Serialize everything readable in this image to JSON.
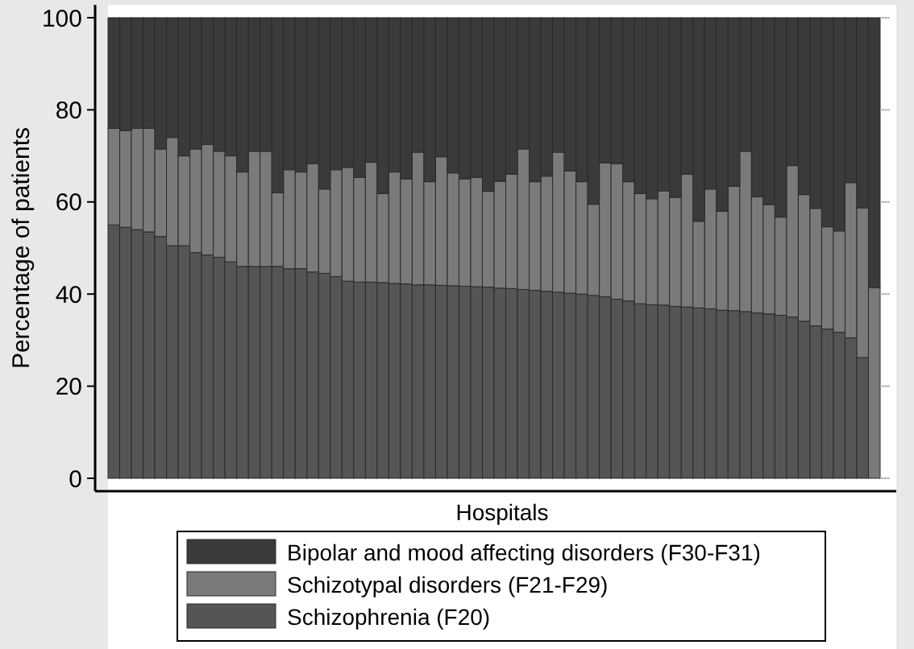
{
  "chart_data": {
    "type": "bar",
    "stacked": true,
    "ylabel": "Percentage of patients",
    "xlabel": "Hospitals",
    "categories": [
      null,
      null,
      null,
      null,
      null,
      null,
      null,
      null,
      null,
      null,
      null,
      null,
      null,
      null,
      null,
      null,
      null,
      null,
      null,
      null,
      null,
      null,
      null,
      null,
      null,
      null,
      null,
      null,
      null,
      null,
      null,
      null,
      null,
      null,
      null,
      null,
      null,
      null,
      null,
      null,
      null,
      null,
      null,
      null,
      null,
      null,
      null,
      null,
      null,
      null,
      null,
      null,
      null,
      null,
      null,
      null,
      null,
      null,
      null,
      null,
      null,
      null,
      null,
      null,
      null,
      null
    ],
    "ylim": [
      0,
      100
    ],
    "yticks": [
      0,
      20,
      40,
      60,
      80,
      100
    ],
    "legend": "bottom",
    "series": [
      {
        "name": "Schizophrenia (F20)",
        "color": "#555555",
        "values": [
          55,
          54.5,
          54,
          53.5,
          52.5,
          50.5,
          50.5,
          49,
          48.5,
          48,
          47,
          46,
          46,
          46,
          46,
          45.5,
          45.5,
          44.8,
          44.5,
          43.8,
          42.8,
          42.6,
          42.6,
          42.5,
          42.3,
          42.2,
          42,
          42,
          41.9,
          41.8,
          41.7,
          41.6,
          41.5,
          41.3,
          41.2,
          41,
          40.8,
          40.6,
          40.4,
          40.2,
          40,
          39.7,
          39.4,
          38.9,
          38.5,
          37.9,
          37.7,
          37.6,
          37.3,
          37.2,
          37,
          36.8,
          36.5,
          36.4,
          36.2,
          35.9,
          35.7,
          35.4,
          35,
          34.1,
          33.1,
          32.4,
          31.7,
          30.5,
          26.2,
          0
        ]
      },
      {
        "name": "Schizotypal disorders (F21-F29)",
        "color": "#7a7a7a",
        "values": [
          21,
          21,
          22,
          22.5,
          19,
          23.5,
          19.5,
          22.5,
          24,
          23,
          23,
          20.5,
          25,
          25,
          16,
          21.5,
          21,
          23.5,
          18.3,
          23.2,
          24.7,
          22.7,
          26,
          19.3,
          24.2,
          22.8,
          28.8,
          22.4,
          27.9,
          24.5,
          23.3,
          23.7,
          20.8,
          23.2,
          24.8,
          30.5,
          23.6,
          25,
          30.4,
          26.5,
          24.4,
          19.8,
          29.1,
          29.4,
          25.9,
          23.9,
          23,
          24.8,
          23.7,
          28.8,
          18.8,
          26,
          21.5,
          27,
          34.8,
          25.2,
          23.7,
          21.3,
          32.9,
          27.5,
          25.5,
          22.2,
          22,
          33.7,
          32.5,
          41.4
        ]
      },
      {
        "name": "Bipolar and mood affecting disorders (F30-F31)",
        "color": "#3a3a3a",
        "values": [
          24,
          24.5,
          24,
          24,
          28.5,
          26,
          30,
          28.5,
          27.5,
          29,
          30,
          33.5,
          29,
          29,
          38,
          33,
          33.5,
          31.7,
          37.2,
          33,
          32.5,
          34.7,
          31.4,
          38.2,
          33.5,
          35,
          29.2,
          35.6,
          30.2,
          33.7,
          35,
          34.7,
          37.7,
          35.5,
          34,
          28.5,
          35.6,
          34.4,
          29.2,
          33.3,
          35.6,
          40.5,
          31.5,
          31.7,
          35.6,
          38.2,
          39.3,
          37.6,
          39,
          34,
          44.2,
          37.2,
          42,
          36.6,
          29,
          38.9,
          40.6,
          43.3,
          32.1,
          38.4,
          41.4,
          45.4,
          46.3,
          35.8,
          41.3,
          58.6
        ]
      }
    ]
  }
}
